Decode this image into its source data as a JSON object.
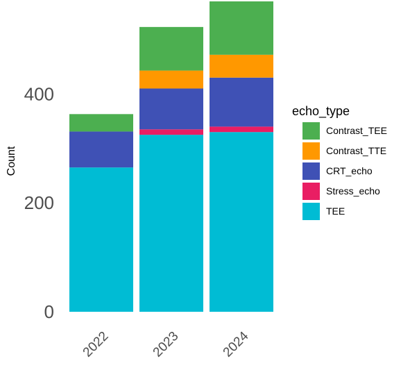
{
  "chart_data": {
    "type": "bar",
    "stacked": true,
    "categories": [
      "2022",
      "2023",
      "2024"
    ],
    "ylabel": "Count",
    "xlabel": "",
    "ylim": [
      0,
      570
    ],
    "yticks": [
      0,
      200,
      400
    ],
    "grid": false,
    "legend_title": "echo_type",
    "legend_position": "right",
    "series": [
      {
        "name": "TEE",
        "color": "#00BCD4",
        "values": [
          265,
          325,
          330
        ]
      },
      {
        "name": "Stress_echo",
        "color": "#E91E63",
        "values": [
          0,
          10,
          10
        ]
      },
      {
        "name": "CRT_echo",
        "color": "#3F51B5",
        "values": [
          66,
          75,
          90
        ]
      },
      {
        "name": "Contrast_TTE",
        "color": "#FF9800",
        "values": [
          0,
          33,
          42
        ]
      },
      {
        "name": "Contrast_TEE",
        "color": "#4CAF50",
        "values": [
          32,
          80,
          98
        ]
      }
    ],
    "legend_order": [
      "Contrast_TEE",
      "Contrast_TTE",
      "CRT_echo",
      "Stress_echo",
      "TEE"
    ]
  }
}
